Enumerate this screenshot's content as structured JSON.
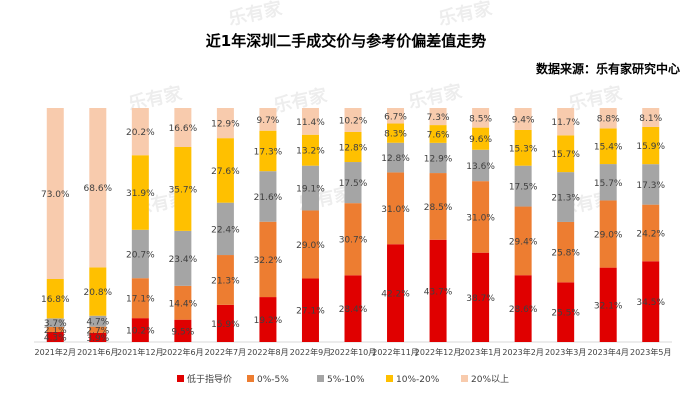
{
  "title": "近1年深圳二手成交价与参考价偏差值走势",
  "source": "数据来源：乐有家研究中心",
  "watermark": "乐有家",
  "chart_data": {
    "type": "bar",
    "stacked": "percent",
    "categories": [
      "2021年2月",
      "2021年6月",
      "2021年12月",
      "2022年6月",
      "2022年7月",
      "2022年8月",
      "2022年9月",
      "2022年10月",
      "2022年11月",
      "2022年12月",
      "2023年1月",
      "2023年2月",
      "2023年3月",
      "2023年4月",
      "2023年5月"
    ],
    "series": [
      {
        "name": "低于指导价",
        "color": "#e00000",
        "values": [
          4.3,
          3.9,
          10.2,
          9.5,
          15.9,
          19.2,
          27.1,
          28.4,
          42.2,
          43.7,
          38.7,
          28.6,
          25.5,
          32.1,
          34.5
        ]
      },
      {
        "name": "0%-5%",
        "color": "#ed7d31",
        "values": [
          2.1,
          2.7,
          17.1,
          14.4,
          21.3,
          32.2,
          29.0,
          30.7,
          31.0,
          28.5,
          31.0,
          29.4,
          25.8,
          29.0,
          24.2
        ]
      },
      {
        "name": "5%-10%",
        "color": "#a5a5a5",
        "values": [
          3.7,
          4.7,
          20.7,
          23.4,
          22.4,
          21.6,
          19.1,
          17.5,
          12.8,
          12.9,
          13.6,
          17.5,
          21.3,
          15.7,
          17.3
        ]
      },
      {
        "name": "10%-20%",
        "color": "#ffc000",
        "values": [
          16.8,
          20.8,
          31.9,
          35.7,
          27.6,
          17.3,
          13.2,
          12.8,
          8.3,
          7.6,
          9.6,
          15.3,
          15.7,
          15.4,
          15.9
        ]
      },
      {
        "name": "20%以上",
        "color": "#f8cbad",
        "values": [
          73.0,
          68.6,
          20.2,
          16.6,
          12.9,
          9.7,
          11.4,
          10.2,
          6.7,
          7.3,
          8.5,
          9.4,
          11.7,
          8.8,
          8.1
        ]
      }
    ],
    "data_labels": [
      [
        "4.3%",
        "2.1%",
        "3.7%",
        "16.8%",
        "73.0%"
      ],
      [
        "3.9%",
        "2.7%",
        "4.7%",
        "20.8%",
        "68.6%"
      ],
      [
        "10.2%",
        "17.1%",
        "20.7%",
        "31.9%",
        "20.2%"
      ],
      [
        "9.5%",
        "14.4%",
        "23.4%",
        "35.7%",
        "16.6%"
      ],
      [
        "15.9%",
        "21.3%",
        "22.4%",
        "27.6%",
        "12.9%"
      ],
      [
        "19.2%",
        "32.2%",
        "21.6%",
        "17.3%",
        "9.7%"
      ],
      [
        "27.1%",
        "29.0%",
        "19.1%",
        "13.2%",
        "11.4%"
      ],
      [
        "28.4%",
        "30.7%",
        "17.5%",
        "12.8%",
        "10.2%"
      ],
      [
        "42.2%",
        "31.0%",
        "12.8%",
        "8.3%",
        "6.7%"
      ],
      [
        "43.7%",
        "28.5%",
        "12.9%",
        "7.6%",
        "7.3%"
      ],
      [
        "38.7%",
        "31.0%",
        "13.6%",
        "9.6%",
        "8.5%"
      ],
      [
        "28.6%",
        "29.4%",
        "17.5%",
        "15.3%",
        "9.4%"
      ],
      [
        "25.5%",
        "25.8%",
        "21.3%",
        "15.7%",
        "11.7%"
      ],
      [
        "32.1%",
        "29.0%",
        "15.7%",
        "15.4%",
        "8.8%"
      ],
      [
        "34.5%",
        "24.2%",
        "17.3%",
        "15.9%",
        "8.1%"
      ]
    ],
    "ylim": [
      0,
      100
    ],
    "grid": false,
    "legend_position": "bottom"
  }
}
